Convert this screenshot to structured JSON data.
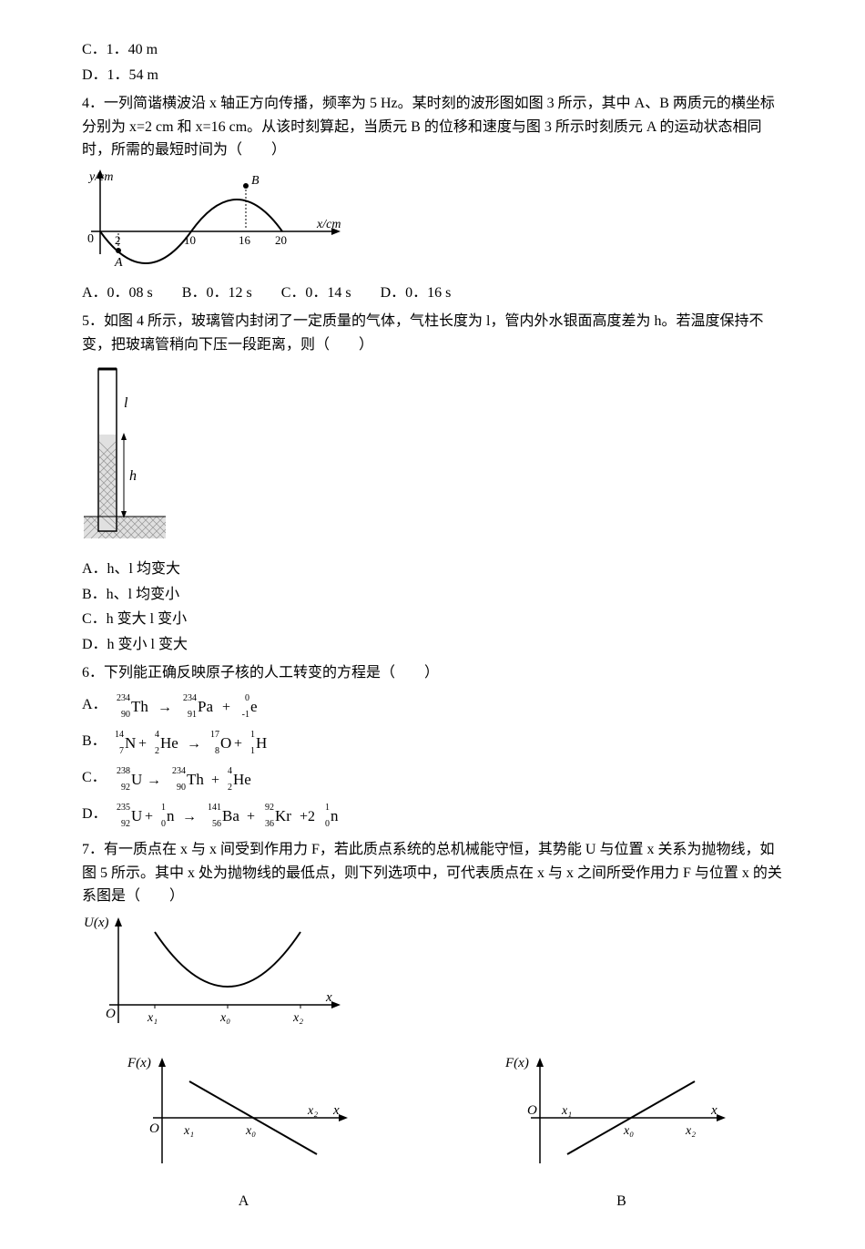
{
  "q3": {
    "optC": "C．1．40 m",
    "optD": "D．1．54 m"
  },
  "q4": {
    "stem": "4．一列简谐横波沿 x 轴正方向传播，频率为 5 Hz。某时刻的波形图如图 3 所示，其中 A、B 两质元的横坐标分别为 x=2 cm 和 x=16 cm。从该时刻算起，当质元 B 的位移和速度与图 3 所示时刻质元 A 的运动状态相同时，所需的最短时间为（　　）",
    "graph": {
      "ylabel": "y/cm",
      "xlabel": "x/cm",
      "ticks": [
        "2",
        "10",
        "16",
        "20"
      ],
      "labelA": "A",
      "labelB": "B",
      "labelO": "0",
      "axisColor": "#000000",
      "curveColor": "#000000",
      "bg": "#ffffff"
    },
    "optA": "A．0．08 s",
    "optB": "B．0．12 s",
    "optC": "C．0．14 s",
    "optD": "D．0．16 s"
  },
  "q5": {
    "stem": "5．如图 4 所示，玻璃管内封闭了一定质量的气体，气柱长度为 l，管内外水银面高度差为 h。若温度保持不变，把玻璃管稍向下压一段距离，则（　　）",
    "fig": {
      "l_label": "l",
      "h_label": "h",
      "tube_outline": "#000000",
      "mercury_fill": "#bfbfbf",
      "hatch": "#9a9a9a",
      "bg": "#ffffff"
    },
    "optA": "A．h、l 均变大",
    "optB": "B．h、l 均变小",
    "optC": "C．h 变大 l 变小",
    "optD": "D．h 变小 l 变大"
  },
  "q6": {
    "stem": "6．下列能正确反映原子核的人工转变的方程是（　　）",
    "opts": {
      "A": {
        "label": "A．",
        "lhs": [
          {
            "A": "234",
            "Z": "90",
            "sym": "Th"
          }
        ],
        "arrow": "→",
        "rhs": [
          {
            "A": "234",
            "Z": "91",
            "sym": "Pa"
          },
          {
            "plus": "+"
          },
          {
            "A": "0",
            "Z": "-1",
            "sym": "e"
          }
        ]
      },
      "B": {
        "label": "B．",
        "lhs": [
          {
            "A": "14",
            "Z": "7",
            "sym": "N"
          },
          {
            "plus": "+"
          },
          {
            "A": "4",
            "Z": "2",
            "sym": "He"
          }
        ],
        "arrow": "→",
        "rhs": [
          {
            "A": "17",
            "Z": "8",
            "sym": "O"
          },
          {
            "plus": "+"
          },
          {
            "A": "1",
            "Z": "1",
            "sym": "H"
          }
        ]
      },
      "C": {
        "label": "C．",
        "lhs": [
          {
            "A": "238",
            "Z": "92",
            "sym": "U"
          }
        ],
        "arrow": "→",
        "rhs": [
          {
            "A": "234",
            "Z": "90",
            "sym": "Th"
          },
          {
            "plus": "+"
          },
          {
            "A": "4",
            "Z": "2",
            "sym": "He"
          }
        ]
      },
      "D": {
        "label": "D．",
        "lhs": [
          {
            "A": "235",
            "Z": "92",
            "sym": "U"
          },
          {
            "plus": "+"
          },
          {
            "A": "1",
            "Z": "0",
            "sym": "n"
          }
        ],
        "arrow": "→",
        "rhs": [
          {
            "A": "141",
            "Z": "56",
            "sym": "Ba"
          },
          {
            "plus": "+"
          },
          {
            "A": "92",
            "Z": "36",
            "sym": "Kr"
          },
          {
            "plus": "+2"
          },
          {
            "A": "1",
            "Z": "0",
            "sym": "n"
          }
        ]
      }
    },
    "style": {
      "font": "Times New Roman",
      "size_big": 16,
      "size_small": 10
    }
  },
  "q7": {
    "stem": "7．有一质点在 x 与 x 间受到作用力 F，若此质点系统的总机械能守恒，其势能 U 与位置 x 关系为抛物线，如图 5 所示。其中 x 处为抛物线的最低点，则下列选项中，可代表质点在 x 与 x 之间所受作用力 F 与位置 x 的关系图是（　　）",
    "top": {
      "ylabel": "U(x)",
      "xlabel": "x",
      "origin": "O",
      "xticks": [
        "x₁",
        "x₀",
        "x₂"
      ],
      "axisColor": "#000000",
      "curveColor": "#000000"
    },
    "A": {
      "ylabel": "F(x)",
      "xlabel": "x",
      "origin": "O",
      "xticks": [
        "x₁",
        "x₀",
        "x₂"
      ],
      "caption": "A",
      "axisColor": "#000000",
      "curveColor": "#000000"
    },
    "B": {
      "ylabel": "F(x)",
      "xlabel": "x",
      "origin": "O",
      "xticks": [
        "x₁",
        "x₀",
        "x₂"
      ],
      "caption": "B",
      "axisColor": "#000000",
      "curveColor": "#000000"
    }
  }
}
